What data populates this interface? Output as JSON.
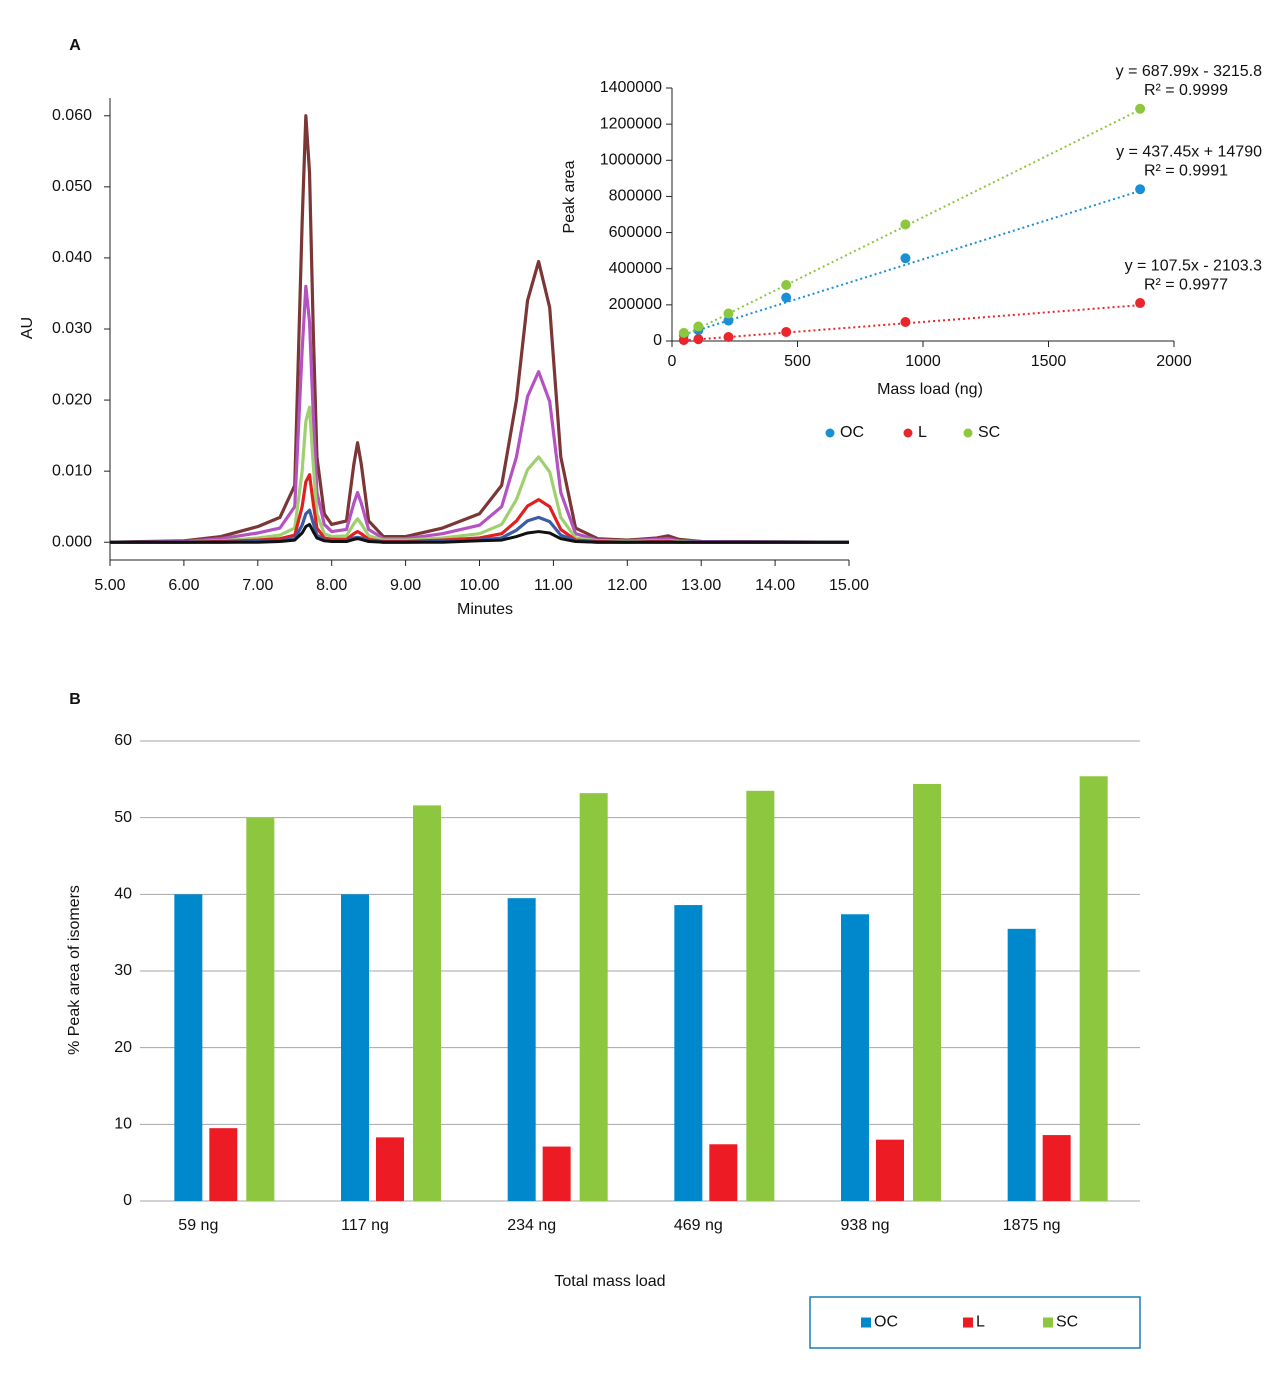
{
  "chart_data": [
    {
      "type": "line",
      "panel": "A",
      "x_label": "Minutes",
      "y_label": "AU",
      "x": [
        5.0,
        6.0,
        6.5,
        7.0,
        7.3,
        7.5,
        7.6,
        7.65,
        7.7,
        7.75,
        7.8,
        7.9,
        8.0,
        8.2,
        8.3,
        8.35,
        8.4,
        8.5,
        8.7,
        9.0,
        9.5,
        10.0,
        10.3,
        10.5,
        10.65,
        10.8,
        10.95,
        11.1,
        11.3,
        11.6,
        12.0,
        12.4,
        12.55,
        12.7,
        13.0,
        15.0
      ],
      "series": [
        {
          "color": "#7b3636",
          "values": [
            0,
            0.0002,
            0.0008,
            0.0022,
            0.0035,
            0.008,
            0.045,
            0.06,
            0.052,
            0.03,
            0.012,
            0.004,
            0.0025,
            0.003,
            0.011,
            0.014,
            0.011,
            0.003,
            0.0008,
            0.0008,
            0.002,
            0.004,
            0.008,
            0.02,
            0.034,
            0.0395,
            0.033,
            0.012,
            0.002,
            0.0005,
            0.0003,
            0.0006,
            0.0009,
            0.0004,
            0.0001,
            0
          ]
        },
        {
          "color": "#b552c2",
          "values": [
            0,
            0.0001,
            0.0005,
            0.0013,
            0.002,
            0.005,
            0.027,
            0.036,
            0.031,
            0.018,
            0.007,
            0.0025,
            0.0015,
            0.0018,
            0.0055,
            0.007,
            0.0055,
            0.0018,
            0.0005,
            0.0005,
            0.0012,
            0.0024,
            0.005,
            0.012,
            0.0205,
            0.024,
            0.0198,
            0.007,
            0.0012,
            0.0003,
            0.0002,
            0.0004,
            0.0005,
            0.0002,
            0.0001,
            0
          ]
        },
        {
          "color": "#9fd070",
          "values": [
            0,
            0,
            0.0002,
            0.0006,
            0.001,
            0.002,
            0.01,
            0.017,
            0.019,
            0.011,
            0.004,
            0.0012,
            0.0008,
            0.0009,
            0.0026,
            0.0033,
            0.0026,
            0.0009,
            0.0003,
            0.0003,
            0.0006,
            0.0012,
            0.0025,
            0.006,
            0.0102,
            0.012,
            0.0099,
            0.0035,
            0.0006,
            0.0002,
            0.0001,
            0.0002,
            0.0002,
            0.0001,
            0,
            0
          ]
        },
        {
          "color": "#e02020",
          "values": [
            0,
            0,
            0.0001,
            0.0003,
            0.0005,
            0.001,
            0.005,
            0.0085,
            0.0095,
            0.0055,
            0.002,
            0.0006,
            0.0004,
            0.0004,
            0.0012,
            0.0015,
            0.0012,
            0.0004,
            0.0001,
            0.0001,
            0.0003,
            0.0006,
            0.0012,
            0.003,
            0.0051,
            0.006,
            0.005,
            0.0018,
            0.0003,
            0.0001,
            0,
            0.0001,
            0.0001,
            0,
            0,
            0
          ]
        },
        {
          "color": "#3a5ca8",
          "values": [
            0,
            0,
            0,
            0.0001,
            0.0002,
            0.0005,
            0.0024,
            0.004,
            0.0045,
            0.0027,
            0.001,
            0.0003,
            0.0002,
            0.0002,
            0.0006,
            0.0007,
            0.0006,
            0.0002,
            0,
            0,
            0.0001,
            0.0003,
            0.0006,
            0.0017,
            0.003,
            0.0035,
            0.0029,
            0.001,
            0.0002,
            0,
            0,
            0,
            0,
            0,
            0,
            0
          ]
        },
        {
          "color": "#111111",
          "values": [
            0,
            0,
            0,
            0,
            0.0001,
            0.0003,
            0.0013,
            0.0022,
            0.0025,
            0.0015,
            0.0006,
            0.0002,
            0.0001,
            0.0001,
            0.0004,
            0.0005,
            0.0004,
            0.0001,
            0,
            0,
            0,
            0.0002,
            0.0003,
            0.0008,
            0.0013,
            0.0015,
            0.0013,
            0.0005,
            0.0001,
            0,
            0,
            0,
            0,
            0,
            0,
            0
          ]
        }
      ],
      "xlim": [
        5,
        15
      ],
      "xticks": [
        {
          "value": 5,
          "label": "5.00"
        },
        {
          "value": 6,
          "label": "6.00"
        },
        {
          "value": 7,
          "label": "7.00"
        },
        {
          "value": 8,
          "label": "8.00"
        },
        {
          "value": 9,
          "label": "9.00"
        },
        {
          "value": 10,
          "label": "10.00"
        },
        {
          "value": 11,
          "label": "11.00"
        },
        {
          "value": 12,
          "label": "12.00"
        },
        {
          "value": 13,
          "label": "13.00"
        },
        {
          "value": 14,
          "label": "14.00"
        },
        {
          "value": 15,
          "label": "15.00"
        }
      ],
      "ylim": [
        -0.0025,
        0.0625
      ],
      "yticks": [
        {
          "value": 0,
          "label": "0.000"
        },
        {
          "value": 0.01,
          "label": "0.010"
        },
        {
          "value": 0.02,
          "label": "0.020"
        },
        {
          "value": 0.03,
          "label": "0.030"
        },
        {
          "value": 0.04,
          "label": "0.040"
        },
        {
          "value": 0.05,
          "label": "0.050"
        },
        {
          "value": 0.06,
          "label": "0.060"
        }
      ],
      "grid": false
    },
    {
      "type": "scatter",
      "x_label": "Mass load (ng)",
      "y_label": "Peak area",
      "legend": "bottom",
      "x": [
        47,
        105,
        225,
        455,
        930,
        1865
      ],
      "series": [
        {
          "name": "OC",
          "color": "#1a8fd6",
          "values": [
            35000,
            60000,
            113000,
            240000,
            458000,
            840000
          ],
          "trendline": {
            "slope": 437.45,
            "intercept": 14790,
            "label": "y = 437.45x + 14790",
            "r2_label": "R² = 0.9991"
          }
        },
        {
          "name": "L",
          "color": "#e8262b",
          "values": [
            5000,
            10000,
            22000,
            50000,
            105000,
            210000
          ],
          "trendline": {
            "slope": 107.5,
            "intercept": -2103.3,
            "label": "y = 107.5x - 2103.3",
            "r2_label": "R² = 0.9977"
          }
        },
        {
          "name": "SC",
          "color": "#8dc63f",
          "values": [
            45000,
            80000,
            152000,
            310000,
            645000,
            1285000
          ],
          "trendline": {
            "slope": 687.99,
            "intercept": -3215.8,
            "label": "y = 687.99x - 3215.8",
            "r2_label": "R² = 0.9999"
          }
        }
      ],
      "xlim": [
        0,
        2000
      ],
      "xticks": [
        0,
        500,
        1000,
        1500,
        2000
      ],
      "ylim": [
        0,
        1400000
      ],
      "yticks": [
        0,
        200000,
        400000,
        600000,
        800000,
        1000000,
        1200000,
        1400000
      ],
      "grid": false
    },
    {
      "type": "bar",
      "panel": "B",
      "x_label": "Total mass load",
      "y_label": "% Peak area of isomers",
      "legend": "bottom-right",
      "categories": [
        "59 ng",
        "117 ng",
        "234 ng",
        "469 ng",
        "938 ng",
        "1875 ng"
      ],
      "series": [
        {
          "name": "OC",
          "color": "#0088cc",
          "values": [
            40,
            40,
            39.5,
            38.6,
            37.4,
            35.5
          ]
        },
        {
          "name": "L",
          "color": "#ed1c24",
          "values": [
            9.5,
            8.3,
            7.1,
            7.4,
            8.0,
            8.6
          ]
        },
        {
          "name": "SC",
          "color": "#8dc63f",
          "values": [
            50,
            51.6,
            53.2,
            53.5,
            54.4,
            55.4
          ]
        }
      ],
      "ylim": [
        0,
        60
      ],
      "yticks": [
        0,
        10,
        20,
        30,
        40,
        50,
        60
      ],
      "grid": true
    }
  ]
}
